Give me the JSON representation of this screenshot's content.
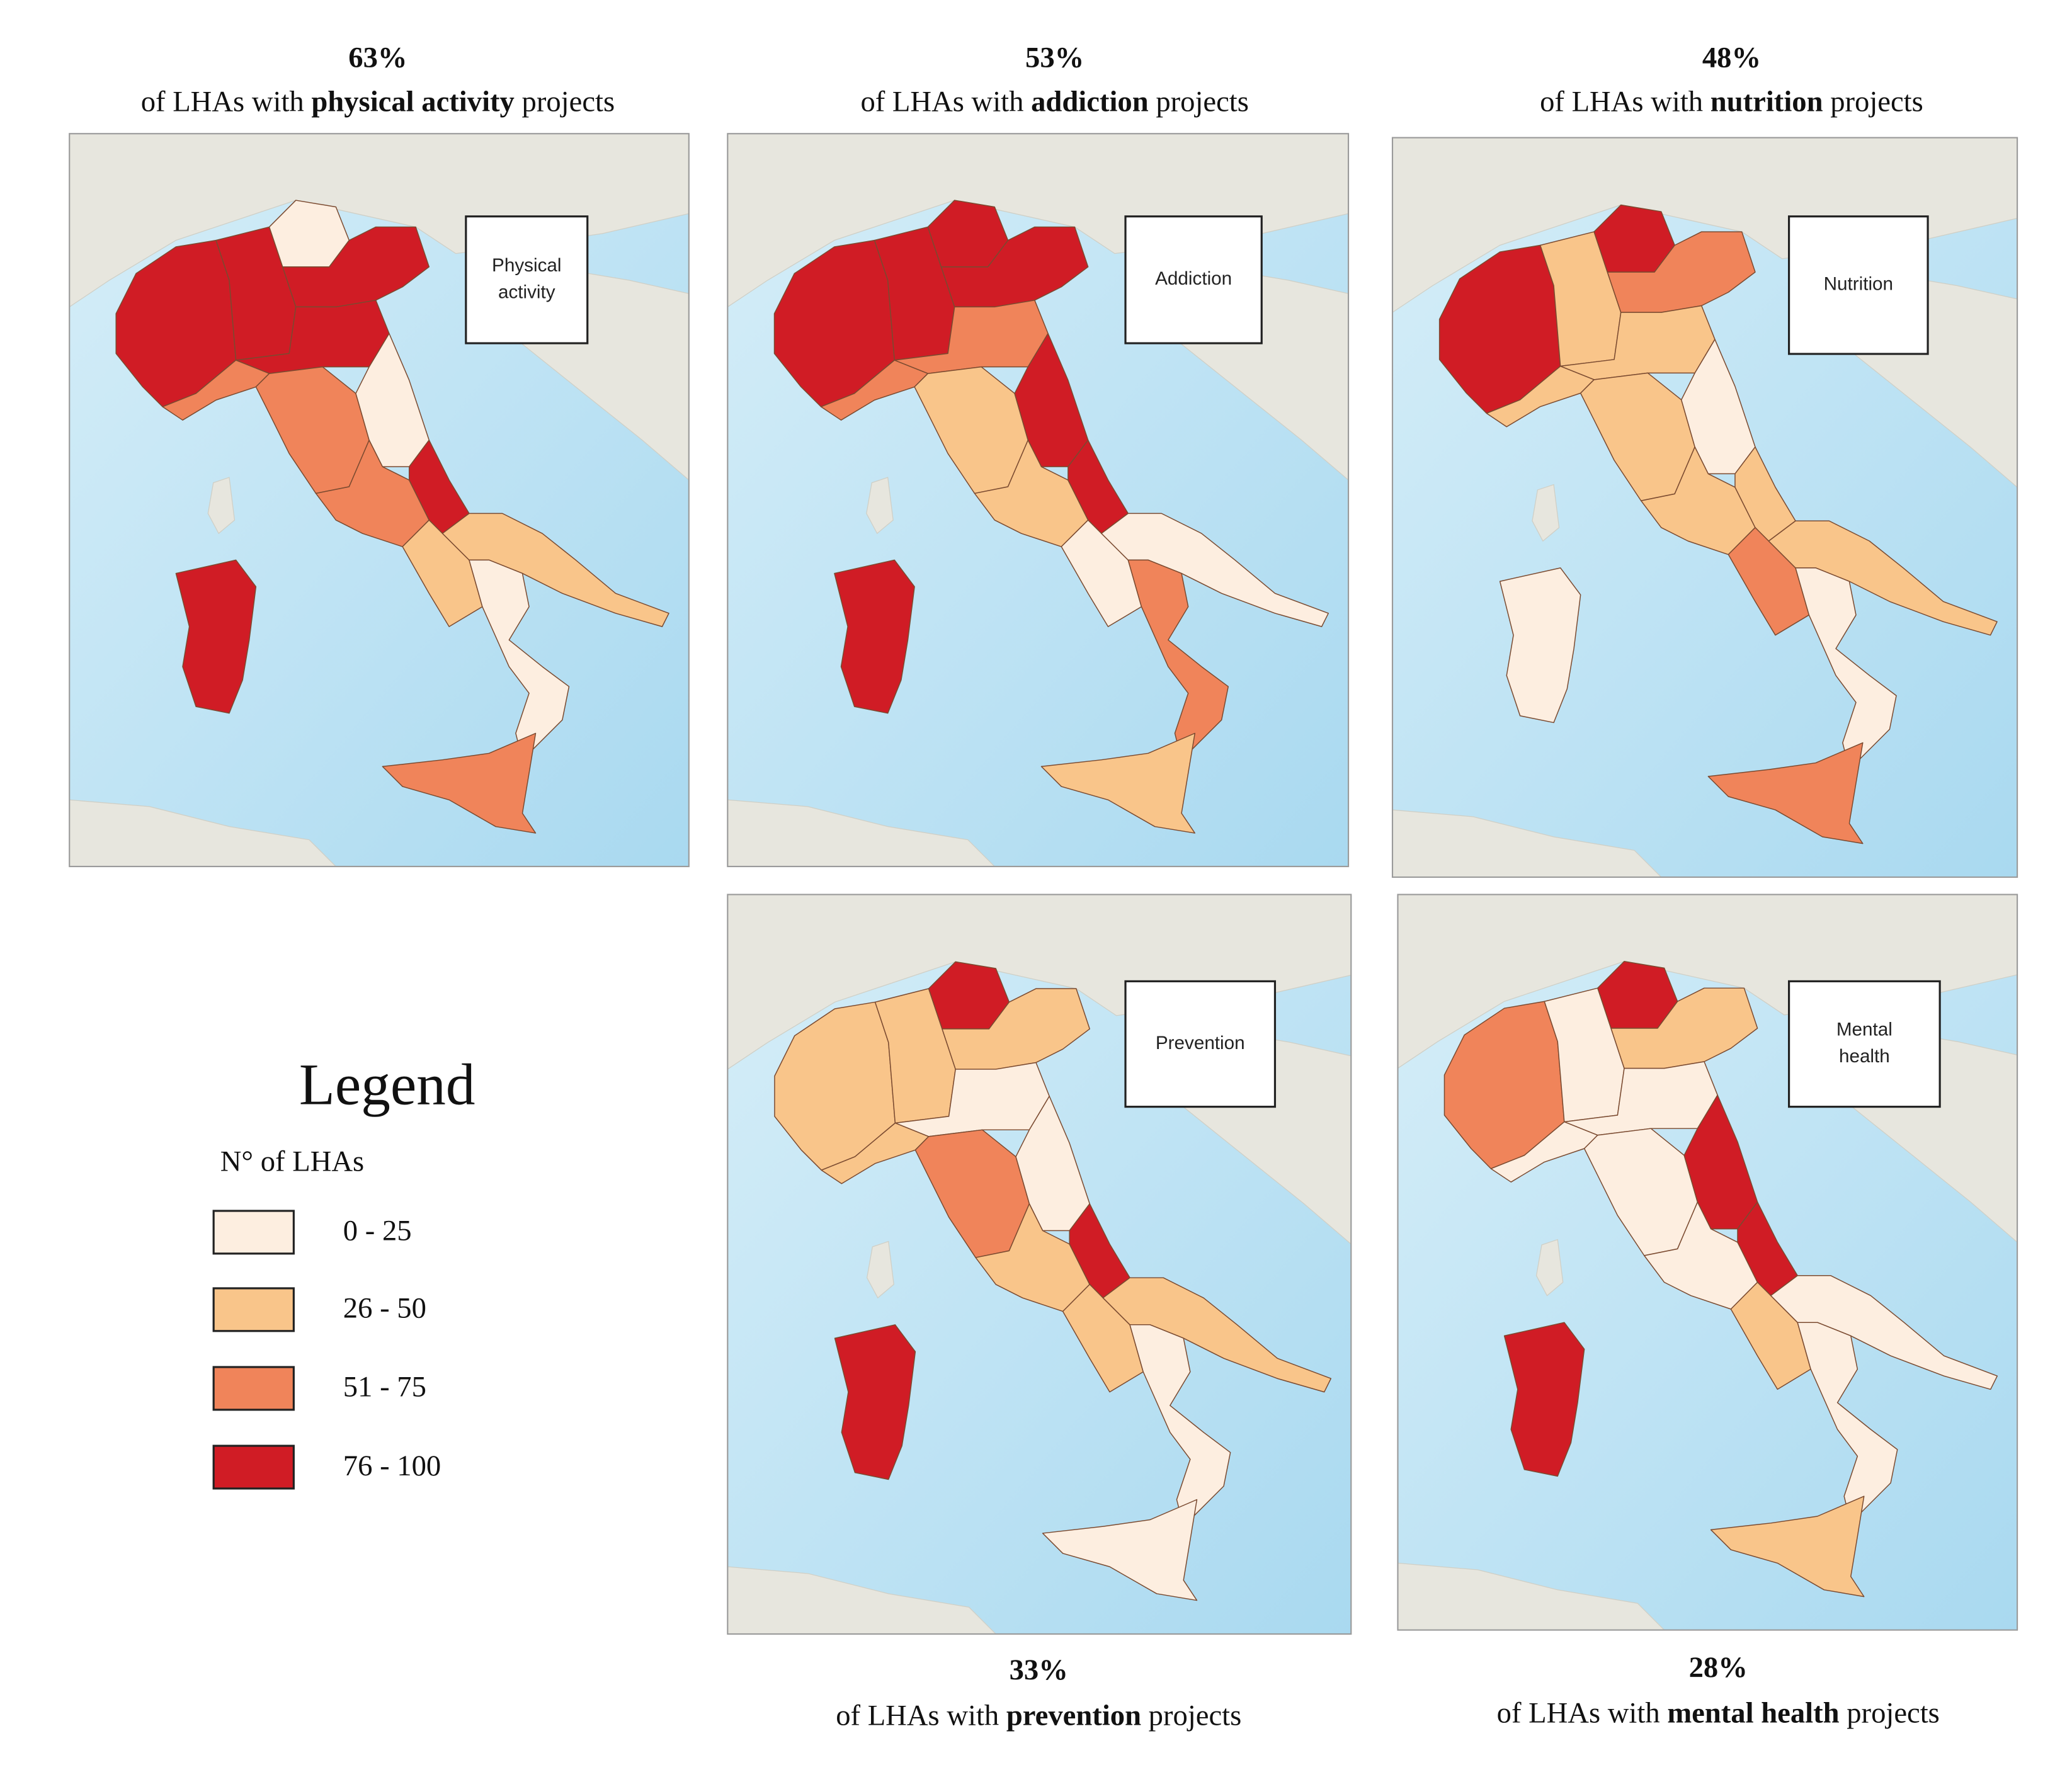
{
  "panels": [
    {
      "percent": "63%",
      "caption": {
        "before": "of LHAs with",
        "emphasis": "physical activity",
        "after": "projects"
      },
      "box_label": [
        "Physical",
        "activity"
      ],
      "regions": [
        3,
        3,
        0,
        3,
        3,
        2,
        2,
        0,
        2,
        3,
        1,
        1,
        0,
        2,
        3
      ]
    },
    {
      "percent": "53%",
      "caption": {
        "before": "of LHAs with",
        "emphasis": "addiction",
        "after": "projects"
      },
      "box_label": [
        "Addiction"
      ],
      "regions": [
        3,
        3,
        3,
        3,
        2,
        2,
        1,
        3,
        1,
        3,
        0,
        0,
        2,
        1,
        3
      ]
    },
    {
      "percent": "48%",
      "caption": {
        "before": "of LHAs with",
        "emphasis": "nutrition",
        "after": "projects"
      },
      "box_label": [
        "Nutrition"
      ],
      "regions": [
        3,
        1,
        3,
        2,
        1,
        1,
        1,
        0,
        1,
        1,
        2,
        1,
        0,
        2,
        0
      ]
    },
    {
      "percent": "33%",
      "caption": {
        "before": "of LHAs with",
        "emphasis": "prevention",
        "after": "projects"
      },
      "box_label": [
        "Prevention"
      ],
      "regions": [
        1,
        1,
        3,
        1,
        0,
        1,
        2,
        0,
        1,
        3,
        1,
        1,
        0,
        0,
        3
      ]
    },
    {
      "percent": "28%",
      "caption": {
        "before": "of LHAs with",
        "emphasis": "mental health",
        "after": "projects"
      },
      "box_label": [
        "Mental",
        "health"
      ],
      "regions": [
        2,
        0,
        3,
        1,
        0,
        0,
        0,
        3,
        0,
        3,
        1,
        0,
        0,
        1,
        3
      ]
    }
  ],
  "legend": {
    "title": "Legend",
    "subtitle": "N° of LHAs",
    "items": [
      {
        "label": "0 - 25",
        "color": "#fdeee0"
      },
      {
        "label": "26 - 50",
        "color": "#f9c58a"
      },
      {
        "label": "51 - 75",
        "color": "#f0845a"
      },
      {
        "label": "76 - 100",
        "color": "#d01c25"
      }
    ]
  }
}
